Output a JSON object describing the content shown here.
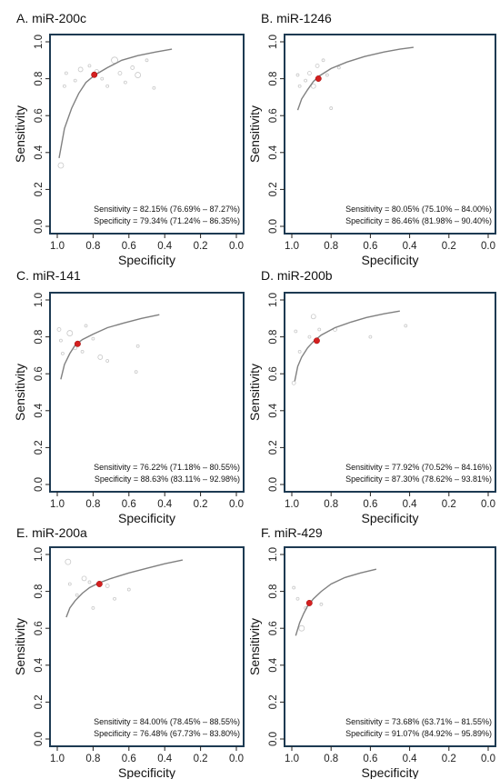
{
  "figure": {
    "panels": [
      {
        "title": "A. miR-200c",
        "sensitivity_text": "Sensitivity = 82.15% (76.69% – 87.27%)",
        "specificity_text": "Specificity = 79.34% (71.24% – 86.35%)"
      },
      {
        "title": "B. miR-1246",
        "sensitivity_text": "Sensitivity = 80.05% (75.10% – 84.00%)",
        "specificity_text": "Specificity = 86.46% (81.98% – 90.40%)"
      },
      {
        "title": "C. miR-141",
        "sensitivity_text": "Sensitivity = 76.22% (71.18% – 80.55%)",
        "specificity_text": "Specificity = 88.63% (83.11% – 92.98%)"
      },
      {
        "title": "D. miR-200b",
        "sensitivity_text": "Sensitivity = 77.92% (70.52% – 84.16%)",
        "specificity_text": "Specificity = 87.30% (78.62% – 93.81%)"
      },
      {
        "title": "E. miR-200a",
        "sensitivity_text": "Sensitivity = 84.00% (78.45% – 88.55%)",
        "specificity_text": "Specificity = 76.48% (67.73% – 83.80%)"
      },
      {
        "title": "F. miR-429",
        "sensitivity_text": "Sensitivity = 73.68% (63.71% – 81.55%)",
        "specificity_text": "Specificity = 91.07% (84.92% – 95.89%)"
      }
    ]
  },
  "chart_data": [
    {
      "type": "scatter",
      "title": "A. miR-200c",
      "xlabel": "Specificity",
      "ylabel": "Sensitivity",
      "xlim": [
        1.0,
        0.0
      ],
      "ylim": [
        0.0,
        1.0
      ],
      "x_ticks": [
        "1.0",
        "0.8",
        "0.6",
        "0.4",
        "0.2",
        "0.0"
      ],
      "y_ticks": [
        "0.0",
        "0.2",
        "0.4",
        "0.6",
        "0.8",
        "1.0"
      ],
      "sroc_curve": {
        "x": [
          0.99,
          0.96,
          0.92,
          0.88,
          0.84,
          0.79,
          0.72,
          0.64,
          0.55,
          0.45,
          0.36
        ],
        "y": [
          0.37,
          0.53,
          0.64,
          0.72,
          0.78,
          0.82,
          0.86,
          0.9,
          0.925,
          0.945,
          0.96
        ]
      },
      "summary_point": {
        "specificity": 0.7934,
        "sensitivity": 0.8215
      },
      "studies": [
        {
          "x": 0.98,
          "y": 0.33,
          "r": 3
        },
        {
          "x": 0.96,
          "y": 0.76,
          "r": 1.5
        },
        {
          "x": 0.95,
          "y": 0.83,
          "r": 1.5
        },
        {
          "x": 0.9,
          "y": 0.79,
          "r": 1.5
        },
        {
          "x": 0.87,
          "y": 0.85,
          "r": 2.5
        },
        {
          "x": 0.82,
          "y": 0.87,
          "r": 1.5
        },
        {
          "x": 0.78,
          "y": 0.84,
          "r": 2
        },
        {
          "x": 0.75,
          "y": 0.8,
          "r": 1.5
        },
        {
          "x": 0.72,
          "y": 0.76,
          "r": 1.5
        },
        {
          "x": 0.68,
          "y": 0.9,
          "r": 3.5
        },
        {
          "x": 0.65,
          "y": 0.83,
          "r": 2
        },
        {
          "x": 0.62,
          "y": 0.78,
          "r": 1.5
        },
        {
          "x": 0.58,
          "y": 0.86,
          "r": 2
        },
        {
          "x": 0.55,
          "y": 0.82,
          "r": 3
        },
        {
          "x": 0.5,
          "y": 0.9,
          "r": 1.5
        },
        {
          "x": 0.46,
          "y": 0.75,
          "r": 1.5
        }
      ]
    },
    {
      "type": "scatter",
      "title": "B. miR-1246",
      "xlabel": "Specificity",
      "ylabel": "Sensitivity",
      "xlim": [
        1.0,
        0.0
      ],
      "ylim": [
        0.0,
        1.0
      ],
      "x_ticks": [
        "1.0",
        "0.8",
        "0.6",
        "0.4",
        "0.2",
        "0.0"
      ],
      "y_ticks": [
        "0.0",
        "0.2",
        "0.4",
        "0.6",
        "0.8",
        "1.0"
      ],
      "sroc_curve": {
        "x": [
          0.97,
          0.95,
          0.92,
          0.89,
          0.86,
          0.8,
          0.72,
          0.63,
          0.53,
          0.45,
          0.38
        ],
        "y": [
          0.63,
          0.69,
          0.74,
          0.785,
          0.815,
          0.855,
          0.89,
          0.92,
          0.945,
          0.96,
          0.97
        ]
      },
      "summary_point": {
        "specificity": 0.8646,
        "sensitivity": 0.8005
      },
      "studies": [
        {
          "x": 0.97,
          "y": 0.82,
          "r": 1.5
        },
        {
          "x": 0.96,
          "y": 0.76,
          "r": 1.5
        },
        {
          "x": 0.93,
          "y": 0.79,
          "r": 1.5
        },
        {
          "x": 0.91,
          "y": 0.83,
          "r": 2
        },
        {
          "x": 0.89,
          "y": 0.76,
          "r": 2.5
        },
        {
          "x": 0.87,
          "y": 0.87,
          "r": 2
        },
        {
          "x": 0.84,
          "y": 0.9,
          "r": 1.5
        },
        {
          "x": 0.82,
          "y": 0.82,
          "r": 1.5
        },
        {
          "x": 0.8,
          "y": 0.64,
          "r": 1.5
        },
        {
          "x": 0.76,
          "y": 0.86,
          "r": 1.5
        }
      ]
    },
    {
      "type": "scatter",
      "title": "C. miR-141",
      "xlabel": "Specificity",
      "ylabel": "Sensitivity",
      "xlim": [
        1.0,
        0.0
      ],
      "ylim": [
        0.0,
        1.0
      ],
      "x_ticks": [
        "1.0",
        "0.8",
        "0.6",
        "0.4",
        "0.2",
        "0.0"
      ],
      "y_ticks": [
        "0.0",
        "0.2",
        "0.4",
        "0.6",
        "0.8",
        "1.0"
      ],
      "sroc_curve": {
        "x": [
          0.98,
          0.96,
          0.93,
          0.9,
          0.86,
          0.8,
          0.72,
          0.63,
          0.53,
          0.43
        ],
        "y": [
          0.57,
          0.65,
          0.71,
          0.755,
          0.785,
          0.815,
          0.85,
          0.875,
          0.9,
          0.92
        ]
      },
      "summary_point": {
        "specificity": 0.8863,
        "sensitivity": 0.7622
      },
      "studies": [
        {
          "x": 0.99,
          "y": 0.84,
          "r": 2
        },
        {
          "x": 0.98,
          "y": 0.78,
          "r": 1.5
        },
        {
          "x": 0.97,
          "y": 0.71,
          "r": 1.5
        },
        {
          "x": 0.93,
          "y": 0.82,
          "r": 3
        },
        {
          "x": 0.9,
          "y": 0.74,
          "r": 2
        },
        {
          "x": 0.86,
          "y": 0.72,
          "r": 1.5
        },
        {
          "x": 0.84,
          "y": 0.86,
          "r": 1.5
        },
        {
          "x": 0.8,
          "y": 0.79,
          "r": 1.5
        },
        {
          "x": 0.76,
          "y": 0.69,
          "r": 2.5
        },
        {
          "x": 0.72,
          "y": 0.67,
          "r": 1.5
        },
        {
          "x": 0.56,
          "y": 0.61,
          "r": 1.5
        },
        {
          "x": 0.55,
          "y": 0.75,
          "r": 1.5
        }
      ]
    },
    {
      "type": "scatter",
      "title": "D. miR-200b",
      "xlabel": "Specificity",
      "ylabel": "Sensitivity",
      "xlim": [
        1.0,
        0.0
      ],
      "ylim": [
        0.0,
        1.0
      ],
      "x_ticks": [
        "1.0",
        "0.8",
        "0.6",
        "0.4",
        "0.2",
        "0.0"
      ],
      "y_ticks": [
        "0.0",
        "0.2",
        "0.4",
        "0.6",
        "0.8",
        "1.0"
      ],
      "sroc_curve": {
        "x": [
          0.985,
          0.97,
          0.95,
          0.92,
          0.89,
          0.85,
          0.78,
          0.7,
          0.62,
          0.53,
          0.45
        ],
        "y": [
          0.56,
          0.64,
          0.69,
          0.74,
          0.775,
          0.81,
          0.85,
          0.88,
          0.905,
          0.925,
          0.94
        ]
      },
      "summary_point": {
        "specificity": 0.873,
        "sensitivity": 0.7792
      },
      "studies": [
        {
          "x": 0.99,
          "y": 0.55,
          "r": 2
        },
        {
          "x": 0.98,
          "y": 0.83,
          "r": 1.5
        },
        {
          "x": 0.96,
          "y": 0.72,
          "r": 1.5
        },
        {
          "x": 0.91,
          "y": 0.8,
          "r": 1.5
        },
        {
          "x": 0.89,
          "y": 0.91,
          "r": 2.5
        },
        {
          "x": 0.86,
          "y": 0.84,
          "r": 1.5
        },
        {
          "x": 0.78,
          "y": 0.84,
          "r": 2
        },
        {
          "x": 0.6,
          "y": 0.8,
          "r": 1.5
        },
        {
          "x": 0.42,
          "y": 0.86,
          "r": 1.5
        }
      ]
    },
    {
      "type": "scatter",
      "title": "E. miR-200a",
      "xlabel": "Specificity",
      "ylabel": "Sensitivity",
      "xlim": [
        1.0,
        0.0
      ],
      "ylim": [
        0.0,
        1.0
      ],
      "x_ticks": [
        "1.0",
        "0.8",
        "0.6",
        "0.4",
        "0.2",
        "0.0"
      ],
      "y_ticks": [
        "0.0",
        "0.2",
        "0.4",
        "0.6",
        "0.8",
        "1.0"
      ],
      "sroc_curve": {
        "x": [
          0.95,
          0.93,
          0.9,
          0.86,
          0.82,
          0.77,
          0.7,
          0.6,
          0.5,
          0.4,
          0.3
        ],
        "y": [
          0.66,
          0.71,
          0.75,
          0.79,
          0.82,
          0.845,
          0.87,
          0.9,
          0.925,
          0.95,
          0.97
        ]
      },
      "summary_point": {
        "specificity": 0.7648,
        "sensitivity": 0.84
      },
      "studies": [
        {
          "x": 0.94,
          "y": 0.96,
          "r": 3
        },
        {
          "x": 0.93,
          "y": 0.84,
          "r": 1.5
        },
        {
          "x": 0.89,
          "y": 0.78,
          "r": 1.5
        },
        {
          "x": 0.85,
          "y": 0.87,
          "r": 2.5
        },
        {
          "x": 0.82,
          "y": 0.85,
          "r": 1.5
        },
        {
          "x": 0.8,
          "y": 0.71,
          "r": 1.5
        },
        {
          "x": 0.72,
          "y": 0.83,
          "r": 2
        },
        {
          "x": 0.68,
          "y": 0.76,
          "r": 1.5
        },
        {
          "x": 0.6,
          "y": 0.81,
          "r": 1.5
        }
      ]
    },
    {
      "type": "scatter",
      "title": "F. miR-429",
      "xlabel": "Specificity",
      "ylabel": "Sensitivity",
      "xlim": [
        1.0,
        0.0
      ],
      "ylim": [
        0.0,
        1.0
      ],
      "x_ticks": [
        "1.0",
        "0.8",
        "0.6",
        "0.4",
        "0.2",
        "0.0"
      ],
      "y_ticks": [
        "0.0",
        "0.2",
        "0.4",
        "0.6",
        "0.8",
        "1.0"
      ],
      "sroc_curve": {
        "x": [
          0.98,
          0.96,
          0.94,
          0.92,
          0.89,
          0.85,
          0.8,
          0.73,
          0.65,
          0.57
        ],
        "y": [
          0.56,
          0.63,
          0.68,
          0.72,
          0.76,
          0.8,
          0.84,
          0.875,
          0.9,
          0.92
        ]
      },
      "summary_point": {
        "specificity": 0.9107,
        "sensitivity": 0.7368
      },
      "studies": [
        {
          "x": 0.99,
          "y": 0.82,
          "r": 1.5
        },
        {
          "x": 0.97,
          "y": 0.76,
          "r": 1.5
        },
        {
          "x": 0.95,
          "y": 0.6,
          "r": 3
        },
        {
          "x": 0.93,
          "y": 0.71,
          "r": 1.5
        },
        {
          "x": 0.85,
          "y": 0.73,
          "r": 1.5
        }
      ]
    }
  ]
}
